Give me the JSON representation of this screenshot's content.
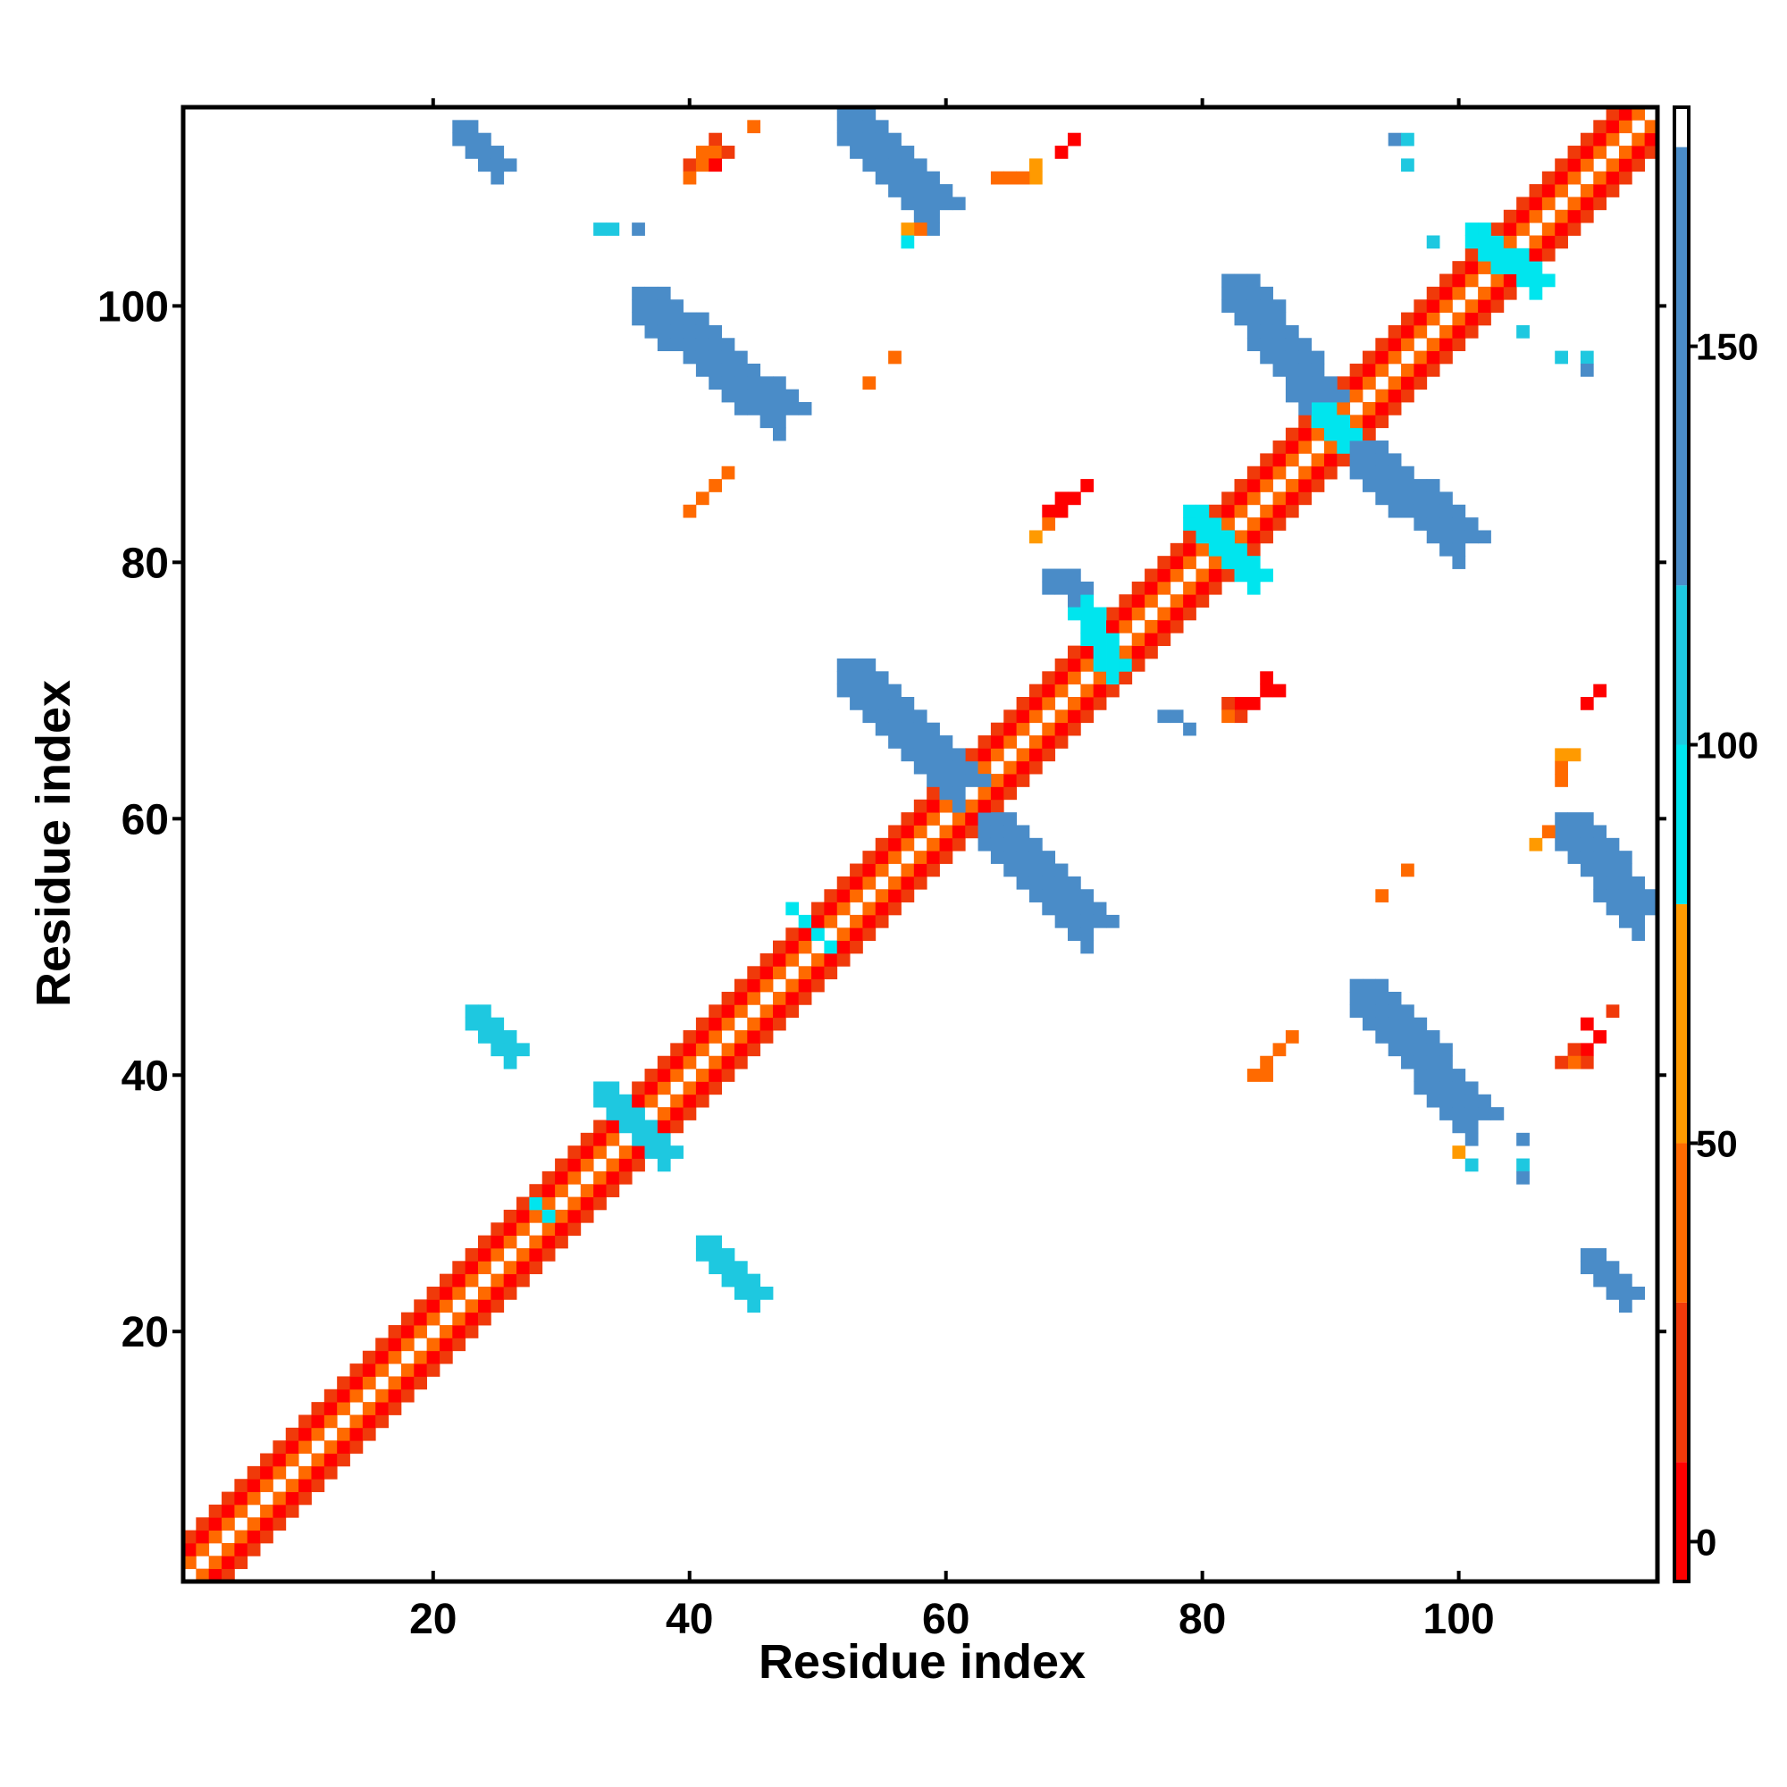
{
  "chart_data": {
    "type": "heatmap",
    "title": "",
    "xlabel": "Residue index",
    "ylabel": "Residue index",
    "xlim": [
      0.5,
      115.5
    ],
    "ylim": [
      0.5,
      115.5
    ],
    "x_ticks": [
      20,
      40,
      60,
      80,
      100
    ],
    "y_ticks": [
      20,
      40,
      60,
      80,
      100
    ],
    "grid": false,
    "colorbar": {
      "range": [
        -5,
        180
      ],
      "ticks": [
        0,
        50,
        100,
        150
      ],
      "bands": [
        {
          "from": -5,
          "to": 10,
          "color": "#ff0000"
        },
        {
          "from": 10,
          "to": 30,
          "color": "#f03a0a"
        },
        {
          "from": 30,
          "to": 50,
          "color": "#ff6a00"
        },
        {
          "from": 50,
          "to": 80,
          "color": "#ff9a00"
        },
        {
          "from": 80,
          "to": 100,
          "color": "#00e5ee"
        },
        {
          "from": 100,
          "to": 120,
          "color": "#1ec8e0"
        },
        {
          "from": 120,
          "to": 175,
          "color": "#4a8cc8"
        },
        {
          "from": 175,
          "to": 180,
          "color": "#ffffff"
        }
      ]
    },
    "value_colors": {
      "red": "#ff0000",
      "red_orange": "#f03a0a",
      "orange": "#ff6a00",
      "amber": "#ff9a00",
      "cyan": "#00e5ee",
      "light_blue": "#1ec8e0",
      "steel_blue": "#4a8cc8"
    },
    "diagonal": {
      "from": 1,
      "to": 115,
      "pattern": [
        {
          "offset": 1,
          "color": "orange"
        },
        {
          "offset": 2,
          "color": "red"
        },
        {
          "offset": 3,
          "color": "red_orange"
        }
      ]
    },
    "strands": [
      {
        "x": [
          33,
          38
        ],
        "y": [
          39,
          34
        ],
        "width": 2,
        "color": "light_blue"
      },
      {
        "x": [
          28,
          29
        ],
        "y": [
          30,
          29
        ],
        "width": 1,
        "color": "cyan"
      },
      {
        "x": [
          48,
          51
        ],
        "y": [
          53,
          50
        ],
        "width": 1,
        "color": "cyan"
      },
      {
        "x": [
          36,
          47
        ],
        "y": [
          101,
          92
        ],
        "width": 3,
        "color": "steel_blue"
      },
      {
        "x": [
          52,
          59
        ],
        "y": [
          115,
          108
        ],
        "width": 3,
        "color": "steel_blue"
      },
      {
        "x": [
          22,
          25
        ],
        "y": [
          114,
          111
        ],
        "width": 2,
        "color": "steel_blue"
      },
      {
        "x": [
          23,
          26
        ],
        "y": [
          45,
          42
        ],
        "width": 2,
        "color": "light_blue"
      },
      {
        "x": [
          41,
          45
        ],
        "y": [
          27,
          23
        ],
        "width": 2,
        "color": "light_blue"
      },
      {
        "x": [
          52,
          61
        ],
        "y": [
          72,
          63
        ],
        "width": 3,
        "color": "steel_blue"
      },
      {
        "x": [
          63,
          71
        ],
        "y": [
          60,
          52
        ],
        "width": 3,
        "color": "steel_blue"
      },
      {
        "x": [
          70,
          73
        ],
        "y": [
          77,
          72
        ],
        "width": 2,
        "color": "cyan"
      },
      {
        "x": [
          68,
          70
        ],
        "y": [
          79,
          78
        ],
        "width": 2,
        "color": "steel_blue"
      },
      {
        "x": [
          77,
          79
        ],
        "y": [
          68,
          67
        ],
        "width": 1,
        "color": "steel_blue"
      },
      {
        "x": [
          79,
          84
        ],
        "y": [
          84,
          79
        ],
        "width": 2,
        "color": "cyan"
      },
      {
        "x": [
          82,
          89
        ],
        "y": [
          102,
          93
        ],
        "width": 3,
        "color": "steel_blue"
      },
      {
        "x": [
          92,
          100
        ],
        "y": [
          89,
          82
        ],
        "width": 3,
        "color": "steel_blue"
      },
      {
        "x": [
          89,
          91
        ],
        "y": [
          92,
          90
        ],
        "width": 2,
        "color": "cyan"
      },
      {
        "x": [
          92,
          101
        ],
        "y": [
          47,
          37
        ],
        "width": 3,
        "color": "steel_blue"
      },
      {
        "x": [
          108,
          114
        ],
        "y": [
          60,
          53
        ],
        "width": 3,
        "color": "steel_blue"
      },
      {
        "x": [
          101,
          106
        ],
        "y": [
          106,
          102
        ],
        "width": 2,
        "color": "cyan"
      },
      {
        "x": [
          110,
          113
        ],
        "y": [
          26,
          23
        ],
        "width": 2,
        "color": "steel_blue"
      }
    ],
    "cells": [
      {
        "x": 33,
        "y": 106,
        "color": "light_blue"
      },
      {
        "x": 34,
        "y": 106,
        "color": "light_blue"
      },
      {
        "x": 36,
        "y": 106,
        "color": "steel_blue"
      },
      {
        "x": 95,
        "y": 113,
        "color": "steel_blue"
      },
      {
        "x": 96,
        "y": 113,
        "color": "light_blue"
      },
      {
        "x": 96,
        "y": 111,
        "color": "light_blue"
      },
      {
        "x": 98,
        "y": 105,
        "color": "light_blue"
      },
      {
        "x": 105,
        "y": 98,
        "color": "light_blue"
      },
      {
        "x": 108,
        "y": 96,
        "color": "light_blue"
      },
      {
        "x": 110,
        "y": 96,
        "color": "light_blue"
      },
      {
        "x": 110,
        "y": 95,
        "color": "steel_blue"
      },
      {
        "x": 105,
        "y": 35,
        "color": "steel_blue"
      },
      {
        "x": 105,
        "y": 33,
        "color": "light_blue"
      },
      {
        "x": 105,
        "y": 32,
        "color": "steel_blue"
      },
      {
        "x": 100,
        "y": 34,
        "color": "amber"
      },
      {
        "x": 101,
        "y": 33,
        "color": "light_blue"
      },
      {
        "x": 42,
        "y": 113,
        "color": "red_orange"
      },
      {
        "x": 41,
        "y": 112,
        "color": "orange"
      },
      {
        "x": 42,
        "y": 112,
        "color": "orange"
      },
      {
        "x": 43,
        "y": 112,
        "color": "red_orange"
      },
      {
        "x": 40,
        "y": 111,
        "color": "red_orange"
      },
      {
        "x": 41,
        "y": 111,
        "color": "orange"
      },
      {
        "x": 42,
        "y": 111,
        "color": "red"
      },
      {
        "x": 40,
        "y": 110,
        "color": "orange"
      },
      {
        "x": 45,
        "y": 114,
        "color": "orange"
      },
      {
        "x": 67,
        "y": 110,
        "color": "amber"
      },
      {
        "x": 66,
        "y": 110,
        "color": "orange"
      },
      {
        "x": 65,
        "y": 110,
        "color": "orange"
      },
      {
        "x": 64,
        "y": 110,
        "color": "orange"
      },
      {
        "x": 67,
        "y": 111,
        "color": "amber"
      },
      {
        "x": 69,
        "y": 112,
        "color": "red"
      },
      {
        "x": 70,
        "y": 113,
        "color": "red"
      },
      {
        "x": 58,
        "y": 106,
        "color": "orange"
      },
      {
        "x": 57,
        "y": 106,
        "color": "amber"
      },
      {
        "x": 57,
        "y": 105,
        "color": "cyan"
      },
      {
        "x": 56,
        "y": 96,
        "color": "orange"
      },
      {
        "x": 54,
        "y": 94,
        "color": "orange"
      },
      {
        "x": 40,
        "y": 84,
        "color": "orange"
      },
      {
        "x": 41,
        "y": 85,
        "color": "orange"
      },
      {
        "x": 42,
        "y": 86,
        "color": "orange"
      },
      {
        "x": 43,
        "y": 87,
        "color": "orange"
      },
      {
        "x": 69,
        "y": 85,
        "color": "red"
      },
      {
        "x": 70,
        "y": 85,
        "color": "red"
      },
      {
        "x": 71,
        "y": 86,
        "color": "red"
      },
      {
        "x": 68,
        "y": 84,
        "color": "red"
      },
      {
        "x": 69,
        "y": 84,
        "color": "red"
      },
      {
        "x": 68,
        "y": 83,
        "color": "orange"
      },
      {
        "x": 67,
        "y": 82,
        "color": "amber"
      },
      {
        "x": 86,
        "y": 70,
        "color": "red"
      },
      {
        "x": 85,
        "y": 70,
        "color": "red"
      },
      {
        "x": 84,
        "y": 69,
        "color": "red"
      },
      {
        "x": 83,
        "y": 69,
        "color": "red"
      },
      {
        "x": 82,
        "y": 69,
        "color": "red_orange"
      },
      {
        "x": 83,
        "y": 68,
        "color": "red_orange"
      },
      {
        "x": 82,
        "y": 68,
        "color": "orange"
      },
      {
        "x": 85,
        "y": 71,
        "color": "red"
      },
      {
        "x": 111,
        "y": 70,
        "color": "red"
      },
      {
        "x": 110,
        "y": 69,
        "color": "red"
      },
      {
        "x": 108,
        "y": 65,
        "color": "amber"
      },
      {
        "x": 109,
        "y": 65,
        "color": "amber"
      },
      {
        "x": 108,
        "y": 64,
        "color": "orange"
      },
      {
        "x": 108,
        "y": 63,
        "color": "orange"
      },
      {
        "x": 96,
        "y": 56,
        "color": "orange"
      },
      {
        "x": 94,
        "y": 54,
        "color": "orange"
      },
      {
        "x": 106,
        "y": 58,
        "color": "amber"
      },
      {
        "x": 107,
        "y": 59,
        "color": "orange"
      },
      {
        "x": 112,
        "y": 45,
        "color": "red_orange"
      },
      {
        "x": 110,
        "y": 44,
        "color": "red"
      },
      {
        "x": 111,
        "y": 43,
        "color": "red"
      },
      {
        "x": 110,
        "y": 42,
        "color": "red"
      },
      {
        "x": 109,
        "y": 42,
        "color": "red_orange"
      },
      {
        "x": 110,
        "y": 41,
        "color": "red_orange"
      },
      {
        "x": 109,
        "y": 41,
        "color": "orange"
      },
      {
        "x": 108,
        "y": 41,
        "color": "red_orange"
      },
      {
        "x": 87,
        "y": 43,
        "color": "orange"
      },
      {
        "x": 86,
        "y": 42,
        "color": "orange"
      },
      {
        "x": 85,
        "y": 41,
        "color": "orange"
      },
      {
        "x": 84,
        "y": 40,
        "color": "orange"
      },
      {
        "x": 85,
        "y": 40,
        "color": "orange"
      }
    ]
  }
}
